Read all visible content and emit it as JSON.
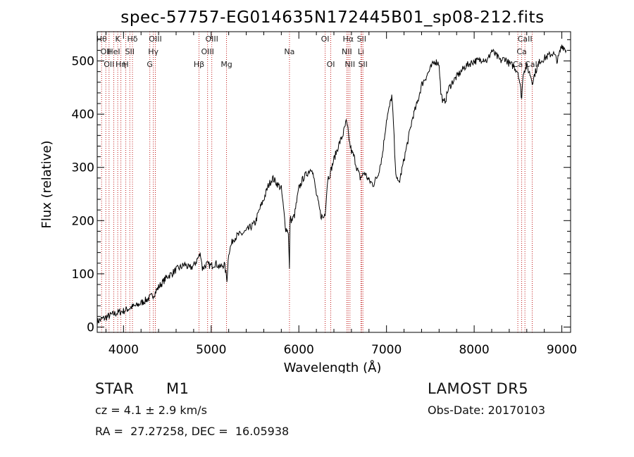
{
  "chart_data": {
    "type": "line",
    "title": "spec-57757-EG014635N172445B01_sp08-212.fits",
    "xlabel": "Wavelength (Å)",
    "ylabel": "Flux (relative)",
    "xlim": [
      3700,
      9100
    ],
    "ylim": [
      -10,
      555
    ],
    "xticks": [
      4000,
      5000,
      6000,
      7000,
      8000,
      9000
    ],
    "yticks": [
      0,
      100,
      200,
      300,
      400,
      500
    ],
    "grid": false,
    "line_color": "#000000",
    "marker_color": "#c01818",
    "series": [
      {
        "x": [
          3700,
          3750,
          3800,
          3850,
          3900,
          3950,
          4000,
          4050,
          4100,
          4150,
          4200,
          4250,
          4300,
          4350,
          4400,
          4450,
          4500,
          4550,
          4600,
          4650,
          4700,
          4750,
          4800,
          4850,
          4880,
          4900,
          4950,
          5000,
          5050,
          5100,
          5150,
          5180,
          5200,
          5250,
          5300,
          5350,
          5400,
          5450,
          5500,
          5550,
          5600,
          5650,
          5700,
          5750,
          5800,
          5850,
          5880,
          5893,
          5900,
          5920,
          5950,
          6000,
          6050,
          6100,
          6150,
          6200,
          6250,
          6280,
          6300,
          6330,
          6350,
          6400,
          6450,
          6500,
          6540,
          6560,
          6580,
          6600,
          6630,
          6660,
          6700,
          6750,
          6800,
          6850,
          6900,
          6950,
          7000,
          7030,
          7060,
          7080,
          7100,
          7130,
          7150,
          7200,
          7250,
          7300,
          7350,
          7400,
          7450,
          7500,
          7550,
          7600,
          7620,
          7650,
          7680,
          7700,
          7750,
          7800,
          7850,
          7900,
          7950,
          8000,
          8050,
          8100,
          8150,
          8200,
          8250,
          8300,
          8350,
          8400,
          8450,
          8500,
          8520,
          8542,
          8560,
          8600,
          8650,
          8662,
          8700,
          8750,
          8800,
          8850,
          8900,
          8950,
          9000,
          9050
        ],
        "y": [
          10,
          15,
          18,
          22,
          25,
          28,
          30,
          34,
          38,
          40,
          45,
          50,
          55,
          62,
          75,
          85,
          95,
          100,
          108,
          112,
          118,
          110,
          115,
          130,
          138,
          110,
          118,
          115,
          120,
          112,
          118,
          90,
          140,
          165,
          172,
          175,
          180,
          188,
          195,
          220,
          240,
          265,
          280,
          270,
          260,
          185,
          180,
          108,
          205,
          200,
          210,
          260,
          280,
          290,
          300,
          250,
          210,
          205,
          215,
          280,
          285,
          315,
          340,
          360,
          385,
          370,
          345,
          330,
          320,
          300,
          280,
          290,
          275,
          268,
          285,
          320,
          390,
          410,
          435,
          380,
          300,
          270,
          275,
          315,
          355,
          395,
          420,
          455,
          470,
          485,
          500,
          495,
          440,
          420,
          430,
          445,
          460,
          470,
          480,
          490,
          495,
          500,
          500,
          505,
          500,
          520,
          510,
          500,
          505,
          495,
          490,
          480,
          460,
          430,
          480,
          490,
          470,
          460,
          480,
          500,
          505,
          510,
          515,
          500,
          530,
          520
        ]
      }
    ],
    "lines": [
      {
        "x": 3750,
        "row": 0,
        "label": "Hθ"
      },
      {
        "x": 3798,
        "row": 1,
        "label": "OII"
      },
      {
        "x": 3835,
        "row": 2,
        "label": "OII"
      },
      {
        "x": 3889,
        "row": 1,
        "label": "HeI"
      },
      {
        "x": 3934,
        "row": 0,
        "label": "K"
      },
      {
        "x": 3970,
        "row": 2,
        "label": "Hη"
      },
      {
        "x": 4026,
        "row": 2,
        "label": "H"
      },
      {
        "x": 4072,
        "row": 1,
        "label": "SII"
      },
      {
        "x": 4102,
        "row": 0,
        "label": "Hδ"
      },
      {
        "x": 4300,
        "row": 2,
        "label": "G"
      },
      {
        "x": 4340,
        "row": 1,
        "label": "Hγ"
      },
      {
        "x": 4363,
        "row": 0,
        "label": "OIII"
      },
      {
        "x": 4861,
        "row": 2,
        "label": "Hβ"
      },
      {
        "x": 4959,
        "row": 1,
        "label": "OIII"
      },
      {
        "x": 5007,
        "row": 0,
        "label": "OIII"
      },
      {
        "x": 5175,
        "row": 2,
        "label": "Mg"
      },
      {
        "x": 5893,
        "row": 1,
        "label": "Na"
      },
      {
        "x": 6300,
        "row": 0,
        "label": "OI"
      },
      {
        "x": 6364,
        "row": 2,
        "label": "OI"
      },
      {
        "x": 6548,
        "row": 1,
        "label": "NII"
      },
      {
        "x": 6563,
        "row": 0,
        "label": "Hα"
      },
      {
        "x": 6583,
        "row": 2,
        "label": "NII"
      },
      {
        "x": 6708,
        "row": 1,
        "label": "Li"
      },
      {
        "x": 6716,
        "row": 0,
        "label": "SII"
      },
      {
        "x": 6731,
        "row": 2,
        "label": "SII"
      },
      {
        "x": 8498,
        "row": 2,
        "label": "Ca"
      },
      {
        "x": 8542,
        "row": 1,
        "label": "Ca"
      },
      {
        "x": 8579,
        "row": 0,
        "label": "CaII"
      },
      {
        "x": 8662,
        "row": 2,
        "label": "CaII"
      }
    ]
  },
  "info": {
    "class": "STAR",
    "subclass": "M1",
    "survey": "LAMOST DR5",
    "cz": "cz = 4.1 ± 2.9 km/s",
    "obs_date": "Obs-Date: 20170103",
    "coords": "RA =  27.27258, DEC =  16.05938"
  }
}
